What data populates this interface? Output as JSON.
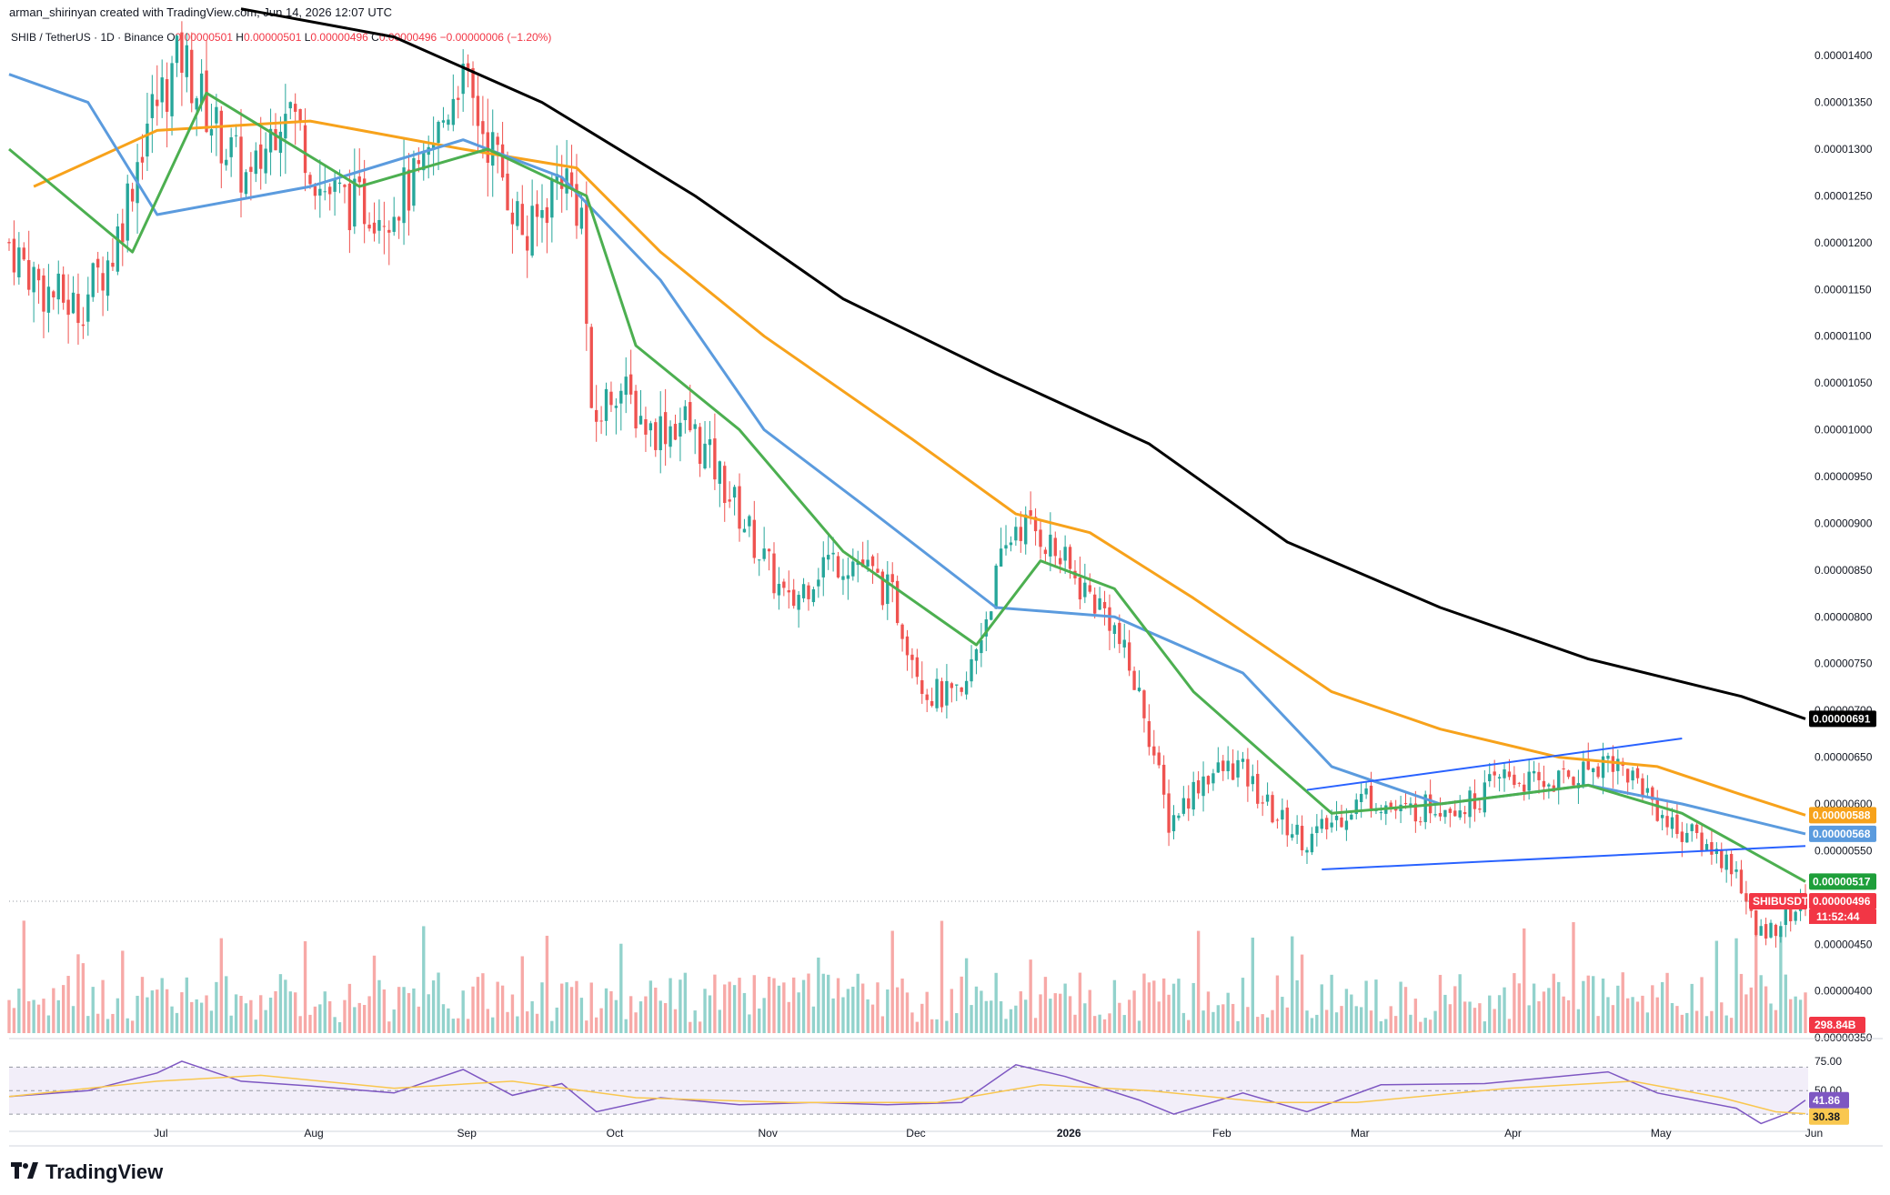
{
  "header": {
    "attribution": "arman_shirinyan created with TradingView.com, Jun 14, 2026 12:07 UTC",
    "symbol": "SHIB / TetherUS · 1D · Binance",
    "o_label": "O",
    "o_value": "0.00000501",
    "h_label": "H",
    "h_value": "0.00000501",
    "l_label": "L",
    "l_value": "0.00000496",
    "c_label": "C",
    "c_value": "0.00000496",
    "change": "−0.00000006 (−1.20%)"
  },
  "footer": {
    "brand": "TradingView"
  },
  "colors": {
    "up": "#26a69a",
    "down": "#ef5350",
    "sma200": "#000000",
    "sma100": "#f7a21b",
    "sma50": "#5b9bde",
    "sma20": "#4caf50",
    "channel": "#2962ff",
    "rsi": "#7e57c2",
    "rsi_ma": "#f9c74f"
  },
  "chart_data": [
    {
      "type": "candlestick",
      "title": "",
      "ylim": [
        3.55e-06,
        1.44e-05
      ],
      "y_ticks": [
        "0.00001400",
        "0.00001350",
        "0.00001300",
        "0.00001250",
        "0.00001200",
        "0.00001150",
        "0.00001100",
        "0.00001050",
        "0.00001000",
        "0.00000950",
        "0.00000900",
        "0.00000850",
        "0.00000800",
        "0.00000750",
        "0.00000700",
        "0.00000650",
        "0.00000600",
        "0.00000550",
        "0.00000500",
        "0.00000450",
        "0.00000400",
        "0.00000350"
      ],
      "x_ticks": [
        "Jul",
        "Aug",
        "Sep",
        "Oct",
        "Nov",
        "Dec",
        "2026",
        "Feb",
        "Mar",
        "Apr",
        "May",
        "Jun"
      ],
      "x_tick_dates": [
        "2025-07-01",
        "2025-08-01",
        "2025-09-01",
        "2025-10-01",
        "2025-11-01",
        "2025-12-01",
        "2026-01-01",
        "2026-02-01",
        "2026-03-01",
        "2026-04-01",
        "2026-05-01",
        "2026-06-01"
      ],
      "date_range": [
        "2025-06-15",
        "2026-06-14"
      ],
      "close_path": [
        [
          "2025-06-15",
          1.2e-05
        ],
        [
          "2025-06-22",
          1.15e-05
        ],
        [
          "2025-06-29",
          1.13e-05
        ],
        [
          "2025-07-06",
          1.19e-05
        ],
        [
          "2025-07-13",
          1.33e-05
        ],
        [
          "2025-07-20",
          1.4e-05
        ],
        [
          "2025-07-27",
          1.32e-05
        ],
        [
          "2025-08-03",
          1.26e-05
        ],
        [
          "2025-08-10",
          1.36e-05
        ],
        [
          "2025-08-17",
          1.26e-05
        ],
        [
          "2025-08-24",
          1.24e-05
        ],
        [
          "2025-08-31",
          1.24e-05
        ],
        [
          "2025-09-07",
          1.27e-05
        ],
        [
          "2025-09-14",
          1.38e-05
        ],
        [
          "2025-09-21",
          1.3e-05
        ],
        [
          "2025-09-28",
          1.2e-05
        ],
        [
          "2025-10-05",
          1.28e-05
        ],
        [
          "2025-10-09",
          1.23e-05
        ],
        [
          "2025-10-11",
          1e-05
        ],
        [
          "2025-10-16",
          1.05e-05
        ],
        [
          "2025-10-23",
          1e-05
        ],
        [
          "2025-10-30",
          1.01e-05
        ],
        [
          "2025-11-06",
          9.5e-06
        ],
        [
          "2025-11-13",
          8.8e-06
        ],
        [
          "2025-11-20",
          8.1e-06
        ],
        [
          "2025-11-27",
          8.6e-06
        ],
        [
          "2025-12-04",
          8.6e-06
        ],
        [
          "2025-12-11",
          8.2e-06
        ],
        [
          "2025-12-18",
          7.2e-06
        ],
        [
          "2025-12-25",
          7.1e-06
        ],
        [
          "2026-01-01",
          8.4e-06
        ],
        [
          "2026-01-05",
          9e-06
        ],
        [
          "2026-01-10",
          8.9e-06
        ],
        [
          "2026-01-17",
          8.4e-06
        ],
        [
          "2026-01-24",
          8e-06
        ],
        [
          "2026-01-31",
          7e-06
        ],
        [
          "2026-02-05",
          5.8e-06
        ],
        [
          "2026-02-12",
          6.3e-06
        ],
        [
          "2026-02-19",
          6.4e-06
        ],
        [
          "2026-02-26",
          5.9e-06
        ],
        [
          "2026-03-05",
          5.6e-06
        ],
        [
          "2026-03-10",
          5.8e-06
        ],
        [
          "2026-03-17",
          6.1e-06
        ],
        [
          "2026-03-24",
          5.9e-06
        ],
        [
          "2026-03-31",
          6e-06
        ],
        [
          "2026-04-07",
          6e-06
        ],
        [
          "2026-04-14",
          6.3e-06
        ],
        [
          "2026-04-21",
          6.2e-06
        ],
        [
          "2026-04-28",
          6.3e-06
        ],
        [
          "2026-05-05",
          6.5e-06
        ],
        [
          "2026-05-12",
          6.2e-06
        ],
        [
          "2026-05-17",
          5.8e-06
        ],
        [
          "2026-05-24",
          5.6e-06
        ],
        [
          "2026-05-31",
          5.3e-06
        ],
        [
          "2026-06-04",
          4.6e-06
        ],
        [
          "2026-06-08",
          4.7e-06
        ],
        [
          "2026-06-14",
          4.96e-06
        ]
      ],
      "price_tags": [
        {
          "label": "0.00000691",
          "value": 6.91e-06,
          "color": "#000000"
        },
        {
          "label": "0.00000588",
          "value": 5.88e-06,
          "color": "#f7a21b"
        },
        {
          "label": "0.00000568",
          "value": 5.68e-06,
          "color": "#5b9bde"
        },
        {
          "label": "0.00000517",
          "value": 5.17e-06,
          "color": "#1e9f3a"
        },
        {
          "label": "0.00000496",
          "value": 4.96e-06,
          "color": "#f23645",
          "name": "SHIBUSDT",
          "countdown": "11:52:44"
        }
      ],
      "volume_tag": "298.84B",
      "moving_averages": [
        {
          "name": "",
          "color": "#000000",
          "points": [
            [
              "2025-08-01",
              1.45e-05
            ],
            [
              "2025-09-01",
              1.42e-05
            ],
            [
              "2025-10-01",
              1.35e-05
            ],
            [
              "2025-11-01",
              1.25e-05
            ],
            [
              "2025-12-01",
              1.14e-05
            ],
            [
              "2026-01-01",
              1.06e-05
            ],
            [
              "2026-02-01",
              9.85e-06
            ],
            [
              "2026-03-01",
              8.8e-06
            ],
            [
              "2026-04-01",
              8.1e-06
            ],
            [
              "2026-05-01",
              7.55e-06
            ],
            [
              "2026-06-01",
              7.15e-06
            ],
            [
              "2026-06-14",
              6.91e-06
            ]
          ]
        },
        {
          "name": "",
          "color": "#f7a21b",
          "points": [
            [
              "2025-06-20",
              1.26e-05
            ],
            [
              "2025-07-15",
              1.32e-05
            ],
            [
              "2025-08-15",
              1.33e-05
            ],
            [
              "2025-09-15",
              1.3e-05
            ],
            [
              "2025-10-08",
              1.28e-05
            ],
            [
              "2025-10-25",
              1.19e-05
            ],
            [
              "2025-11-15",
              1.1e-05
            ],
            [
              "2025-12-15",
              9.9e-06
            ],
            [
              "2026-01-05",
              9.1e-06
            ],
            [
              "2026-01-20",
              8.9e-06
            ],
            [
              "2026-02-10",
              8.2e-06
            ],
            [
              "2026-03-10",
              7.2e-06
            ],
            [
              "2026-04-01",
              6.8e-06
            ],
            [
              "2026-04-25",
              6.5e-06
            ],
            [
              "2026-05-15",
              6.4e-06
            ],
            [
              "2026-06-01",
              6.1e-06
            ],
            [
              "2026-06-14",
              5.88e-06
            ]
          ]
        },
        {
          "name": "",
          "color": "#5b9bde",
          "points": [
            [
              "2025-06-15",
              1.38e-05
            ],
            [
              "2025-07-01",
              1.35e-05
            ],
            [
              "2025-07-15",
              1.23e-05
            ],
            [
              "2025-08-15",
              1.26e-05
            ],
            [
              "2025-09-15",
              1.31e-05
            ],
            [
              "2025-10-05",
              1.27e-05
            ],
            [
              "2025-10-25",
              1.16e-05
            ],
            [
              "2025-11-15",
              1e-05
            ],
            [
              "2025-12-05",
              9.2e-06
            ],
            [
              "2026-01-01",
              8.1e-06
            ],
            [
              "2026-01-25",
              8e-06
            ],
            [
              "2026-02-20",
              7.4e-06
            ],
            [
              "2026-03-10",
              6.4e-06
            ],
            [
              "2026-04-01",
              6e-06
            ],
            [
              "2026-05-01",
              6.2e-06
            ],
            [
              "2026-05-20",
              6e-06
            ],
            [
              "2026-06-14",
              5.68e-06
            ]
          ]
        },
        {
          "name": "",
          "color": "#4caf50",
          "points": [
            [
              "2025-06-15",
              1.3e-05
            ],
            [
              "2025-07-10",
              1.19e-05
            ],
            [
              "2025-07-25",
              1.36e-05
            ],
            [
              "2025-08-25",
              1.26e-05
            ],
            [
              "2025-09-20",
              1.3e-05
            ],
            [
              "2025-10-10",
              1.25e-05
            ],
            [
              "2025-10-20",
              1.09e-05
            ],
            [
              "2025-11-10",
              1e-05
            ],
            [
              "2025-12-01",
              8.7e-06
            ],
            [
              "2025-12-28",
              7.7e-06
            ],
            [
              "2026-01-10",
              8.6e-06
            ],
            [
              "2026-01-25",
              8.3e-06
            ],
            [
              "2026-02-10",
              7.2e-06
            ],
            [
              "2026-02-25",
              6.5e-06
            ],
            [
              "2026-03-10",
              5.9e-06
            ],
            [
              "2026-04-01",
              6e-06
            ],
            [
              "2026-05-01",
              6.2e-06
            ],
            [
              "2026-05-20",
              5.9e-06
            ],
            [
              "2026-06-14",
              5.17e-06
            ]
          ]
        }
      ],
      "channel_lines": [
        {
          "from": [
            "2026-03-05",
            6.15e-06
          ],
          "to": [
            "2026-05-20",
            6.7e-06
          ]
        },
        {
          "from": [
            "2026-03-08",
            5.3e-06
          ],
          "to": [
            "2026-06-14",
            5.55e-06
          ]
        }
      ]
    },
    {
      "type": "bar",
      "title": "",
      "series_type": "volume",
      "ylim": [
        0,
        100
      ],
      "note_units": "relative"
    },
    {
      "type": "line",
      "title": "",
      "series_type": "rsi",
      "ylim": [
        20,
        85
      ],
      "y_ticks": [
        "75.00",
        "50.00"
      ],
      "rsi_tag": "41.86",
      "rsi_ma_tag": "30.38",
      "points": [
        [
          "2025-06-15",
          45
        ],
        [
          "2025-07-01",
          50
        ],
        [
          "2025-07-15",
          65
        ],
        [
          "2025-07-20",
          75
        ],
        [
          "2025-08-01",
          58
        ],
        [
          "2025-08-15",
          54
        ],
        [
          "2025-09-01",
          48
        ],
        [
          "2025-09-15",
          68
        ],
        [
          "2025-09-25",
          46
        ],
        [
          "2025-10-05",
          56
        ],
        [
          "2025-10-12",
          32
        ],
        [
          "2025-10-25",
          44
        ],
        [
          "2025-11-10",
          38
        ],
        [
          "2025-11-25",
          40
        ],
        [
          "2025-12-10",
          38
        ],
        [
          "2025-12-25",
          40
        ],
        [
          "2026-01-05",
          72
        ],
        [
          "2026-01-15",
          62
        ],
        [
          "2026-01-30",
          42
        ],
        [
          "2026-02-06",
          30
        ],
        [
          "2026-02-20",
          48
        ],
        [
          "2026-03-05",
          32
        ],
        [
          "2026-03-20",
          55
        ],
        [
          "2026-04-10",
          56
        ],
        [
          "2026-05-05",
          66
        ],
        [
          "2026-05-15",
          48
        ],
        [
          "2026-05-31",
          35
        ],
        [
          "2026-06-05",
          22
        ],
        [
          "2026-06-10",
          30
        ],
        [
          "2026-06-14",
          41.86
        ]
      ],
      "ma_points": [
        [
          "2025-06-15",
          45
        ],
        [
          "2025-07-15",
          58
        ],
        [
          "2025-08-05",
          63
        ],
        [
          "2025-09-01",
          52
        ],
        [
          "2025-09-25",
          58
        ],
        [
          "2025-10-20",
          44
        ],
        [
          "2025-11-20",
          40
        ],
        [
          "2025-12-20",
          40
        ],
        [
          "2026-01-10",
          55
        ],
        [
          "2026-02-01",
          50
        ],
        [
          "2026-02-25",
          40
        ],
        [
          "2026-03-15",
          40
        ],
        [
          "2026-04-15",
          52
        ],
        [
          "2026-05-10",
          58
        ],
        [
          "2026-05-28",
          44
        ],
        [
          "2026-06-08",
          32
        ],
        [
          "2026-06-14",
          30.38
        ]
      ]
    }
  ]
}
